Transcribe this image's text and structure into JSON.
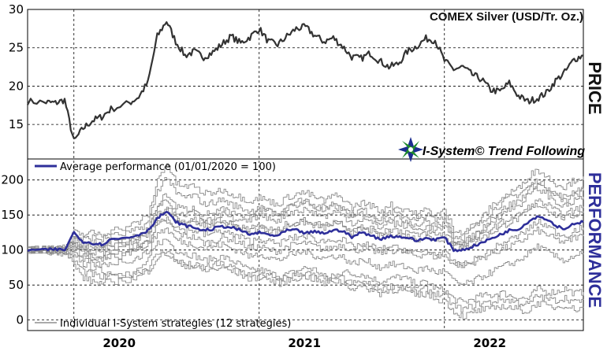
{
  "chart_data": [
    {
      "type": "line",
      "title": "COMEX Silver (USD/Tr. Oz.)",
      "ylabel": "PRICE",
      "ylim": [
        10.5,
        30
      ],
      "yticks": [
        15,
        20,
        25,
        30
      ],
      "xlim": [
        2019.75,
        2022.75
      ],
      "grid": true,
      "series": [
        {
          "values_x": [
            2019.75,
            2019.85,
            2019.9,
            2019.95,
            2020.0,
            2020.05,
            2020.1,
            2020.15,
            2020.2,
            2020.3,
            2020.35,
            2020.4,
            2020.45,
            2020.5,
            2020.55,
            2020.6,
            2020.65,
            2020.7,
            2020.75,
            2020.8,
            2020.85,
            2020.9,
            2020.95,
            2021.0,
            2021.05,
            2021.1,
            2021.15,
            2021.2,
            2021.25,
            2021.3,
            2021.35,
            2021.4,
            2021.45,
            2021.5,
            2021.55,
            2021.6,
            2021.65,
            2021.7,
            2021.75,
            2021.8,
            2021.85,
            2021.9,
            2021.95,
            2022.0,
            2022.05,
            2022.1,
            2022.15,
            2022.2,
            2022.25,
            2022.3,
            2022.35,
            2022.4,
            2022.45,
            2022.5,
            2022.55,
            2022.6,
            2022.65,
            2022.7,
            2022.75
          ],
          "values_y": [
            18.0,
            17.9,
            17.8,
            18.2,
            12.8,
            14.5,
            15.5,
            16.0,
            17.0,
            17.8,
            18.6,
            20.5,
            26.5,
            28.5,
            25.8,
            24.0,
            24.5,
            23.8,
            24.4,
            25.5,
            26.5,
            25.6,
            26.4,
            27.5,
            25.8,
            25.4,
            26.5,
            27.5,
            27.7,
            26.6,
            25.8,
            26.3,
            25.2,
            23.8,
            23.6,
            24.3,
            23.3,
            22.5,
            22.9,
            24.5,
            25.2,
            26.2,
            26.0,
            23.3,
            22.2,
            22.5,
            21.5,
            20.9,
            19.5,
            19.3,
            20.4,
            18.7,
            18.0,
            18.4,
            19.1,
            20.7,
            21.8,
            23.5,
            24.0
          ]
        }
      ]
    },
    {
      "type": "line",
      "title": "I-System© Trend Following",
      "ylabel": "PERFORMANCE",
      "ylim": [
        -15,
        230
      ],
      "yticks": [
        0,
        50,
        100,
        150,
        200
      ],
      "xticks": [
        "2020",
        "2021",
        "2022"
      ],
      "legend_top": "Average performance (01/01/2020 = 100)",
      "legend_bottom": "Individual I-System strategies (12 strategies)",
      "colors": {
        "average": "#2e2f9a",
        "strategies": "#8a8a8a",
        "price": "#333333"
      },
      "average": {
        "values_x": [
          2019.75,
          2019.85,
          2019.9,
          2019.95,
          2020.0,
          2020.05,
          2020.1,
          2020.15,
          2020.2,
          2020.3,
          2020.35,
          2020.4,
          2020.45,
          2020.5,
          2020.55,
          2020.6,
          2020.65,
          2020.7,
          2020.75,
          2020.8,
          2020.85,
          2020.9,
          2020.95,
          2021.0,
          2021.05,
          2021.1,
          2021.15,
          2021.2,
          2021.25,
          2021.3,
          2021.35,
          2021.4,
          2021.45,
          2021.5,
          2021.55,
          2021.6,
          2021.65,
          2021.7,
          2021.75,
          2021.8,
          2021.85,
          2021.9,
          2021.95,
          2022.0,
          2022.05,
          2022.1,
          2022.15,
          2022.2,
          2022.25,
          2022.3,
          2022.35,
          2022.4,
          2022.45,
          2022.5,
          2022.55,
          2022.6,
          2022.65,
          2022.7,
          2022.75
        ],
        "values_y": [
          100,
          100,
          101,
          100,
          125,
          112,
          110,
          108,
          115,
          118,
          122,
          128,
          145,
          155,
          140,
          135,
          132,
          128,
          130,
          134,
          132,
          128,
          122,
          125,
          122,
          120,
          128,
          128,
          124,
          126,
          124,
          128,
          128,
          118,
          125,
          122,
          115,
          120,
          119,
          118,
          113,
          117,
          115,
          118,
          100,
          100,
          105,
          110,
          116,
          122,
          128,
          130,
          140,
          148,
          145,
          135,
          130,
          138,
          140
        ]
      },
      "strategies": [
        {
          "values_y": [
            100,
            98,
            96,
            95,
            95,
            80,
            75,
            70,
            68,
            65,
            72,
            85,
            110,
            115,
            100,
            95,
            92,
            85,
            88,
            90,
            85,
            78,
            70,
            72,
            68,
            62,
            65,
            70,
            75,
            72,
            62,
            58,
            70,
            65,
            66,
            60,
            55,
            58,
            62,
            58,
            50,
            55,
            45,
            42,
            30,
            25,
            30,
            35,
            35,
            40,
            35,
            32,
            30,
            45,
            40,
            40,
            45,
            38,
            40
          ]
        },
        {
          "values_y": [
            100,
            102,
            104,
            103,
            115,
            108,
            110,
            108,
            112,
            118,
            122,
            130,
            160,
            175,
            155,
            150,
            155,
            140,
            145,
            150,
            145,
            140,
            148,
            160,
            155,
            150,
            165,
            170,
            172,
            165,
            160,
            168,
            162,
            150,
            158,
            152,
            145,
            155,
            150,
            148,
            140,
            150,
            142,
            150,
            120,
            118,
            130,
            140,
            155,
            165,
            175,
            180,
            190,
            200,
            190,
            180,
            175,
            185,
            190
          ]
        },
        {
          "values_y": [
            100,
            100,
            100,
            100,
            110,
            100,
            98,
            95,
            100,
            105,
            108,
            112,
            135,
            140,
            125,
            120,
            118,
            110,
            112,
            118,
            115,
            110,
            102,
            105,
            100,
            98,
            105,
            108,
            110,
            105,
            100,
            105,
            108,
            98,
            102,
            100,
            95,
            100,
            98,
            95,
            92,
            95,
            90,
            92,
            80,
            78,
            82,
            88,
            95,
            100,
            105,
            110,
            120,
            128,
            122,
            115,
            110,
            118,
            120
          ]
        },
        {
          "values_y": [
            100,
            101,
            99,
            100,
            105,
            95,
            90,
            88,
            92,
            98,
            105,
            115,
            150,
            160,
            148,
            140,
            145,
            138,
            140,
            142,
            138,
            132,
            128,
            132,
            128,
            125,
            135,
            138,
            140,
            135,
            132,
            138,
            136,
            125,
            130,
            128,
            120,
            125,
            122,
            120,
            115,
            120,
            115,
            118,
            105,
            100,
            110,
            118,
            125,
            132,
            140,
            145,
            155,
            165,
            160,
            150,
            145,
            150,
            155
          ]
        },
        {
          "values_y": [
            100,
            99,
            98,
            97,
            85,
            70,
            65,
            60,
            62,
            65,
            70,
            75,
            95,
            100,
            85,
            80,
            78,
            75,
            78,
            80,
            75,
            70,
            65,
            68,
            62,
            58,
            62,
            65,
            68,
            62,
            58,
            62,
            60,
            52,
            55,
            50,
            45,
            48,
            50,
            45,
            40,
            45,
            38,
            35,
            20,
            15,
            20,
            25,
            25,
            30,
            28,
            25,
            22,
            35,
            30,
            28,
            32,
            25,
            30
          ]
        },
        {
          "values_y": [
            100,
            100,
            101,
            101,
            120,
            115,
            118,
            115,
            120,
            125,
            130,
            140,
            185,
            205,
            180,
            175,
            178,
            165,
            168,
            172,
            165,
            160,
            155,
            160,
            155,
            150,
            160,
            165,
            168,
            160,
            155,
            162,
            158,
            145,
            152,
            148,
            140,
            148,
            145,
            142,
            135,
            142,
            135,
            140,
            115,
            110,
            120,
            130,
            145,
            155,
            165,
            170,
            185,
            195,
            188,
            175,
            170,
            178,
            185
          ]
        },
        {
          "values_y": [
            100,
            100,
            100,
            99,
            95,
            85,
            80,
            78,
            82,
            85,
            90,
            98,
            125,
            130,
            115,
            110,
            108,
            102,
            105,
            108,
            102,
            98,
            90,
            95,
            90,
            85,
            92,
            95,
            98,
            92,
            88,
            92,
            90,
            80,
            85,
            82,
            75,
            80,
            78,
            75,
            70,
            75,
            68,
            70,
            55,
            50,
            55,
            62,
            68,
            75,
            80,
            85,
            95,
            105,
            98,
            90,
            85,
            92,
            95
          ]
        },
        {
          "values_y": [
            100,
            101,
            102,
            102,
            108,
            102,
            100,
            100,
            104,
            110,
            115,
            122,
            150,
            158,
            145,
            140,
            140,
            135,
            138,
            140,
            136,
            132,
            130,
            135,
            130,
            128,
            138,
            140,
            142,
            138,
            135,
            140,
            138,
            128,
            132,
            130,
            125,
            130,
            128,
            126,
            120,
            125,
            122,
            124,
            110,
            106,
            114,
            120,
            130,
            138,
            145,
            150,
            160,
            170,
            165,
            155,
            150,
            158,
            162
          ]
        },
        {
          "values_y": [
            100,
            99,
            100,
            98,
            78,
            60,
            55,
            52,
            55,
            58,
            62,
            70,
            90,
            95,
            82,
            78,
            75,
            70,
            72,
            75,
            70,
            65,
            58,
            62,
            58,
            52,
            56,
            60,
            62,
            58,
            52,
            56,
            54,
            45,
            48,
            44,
            38,
            42,
            44,
            40,
            34,
            38,
            30,
            28,
            12,
            5,
            10,
            15,
            15,
            20,
            18,
            15,
            12,
            25,
            20,
            18,
            22,
            15,
            18
          ]
        },
        {
          "values_y": [
            100,
            100,
            102,
            103,
            125,
            122,
            125,
            122,
            128,
            135,
            140,
            150,
            200,
            225,
            195,
            190,
            192,
            180,
            182,
            186,
            180,
            175,
            170,
            175,
            170,
            165,
            175,
            180,
            182,
            175,
            170,
            178,
            174,
            160,
            168,
            164,
            155,
            165,
            160,
            158,
            150,
            158,
            150,
            156,
            130,
            125,
            135,
            145,
            162,
            172,
            182,
            188,
            205,
            215,
            205,
            195,
            190,
            200,
            205
          ]
        },
        {
          "values_y": [
            100,
            100,
            99,
            100,
            102,
            92,
            88,
            86,
            90,
            95,
            100,
            108,
            140,
            148,
            132,
            128,
            128,
            122,
            124,
            128,
            122,
            118,
            112,
            116,
            112,
            108,
            116,
            118,
            120,
            115,
            112,
            116,
            114,
            104,
            108,
            106,
            100,
            105,
            102,
            100,
            95,
            100,
            94,
            96,
            82,
            78,
            85,
            92,
            100,
            108,
            115,
            120,
            130,
            140,
            135,
            125,
            120,
            128,
            132
          ]
        },
        {
          "values_y": [
            100,
            101,
            100,
            101,
            112,
            106,
            106,
            104,
            108,
            114,
            118,
            126,
            165,
            180,
            162,
            158,
            160,
            150,
            154,
            158,
            152,
            148,
            144,
            150,
            146,
            142,
            152,
            156,
            158,
            152,
            148,
            154,
            150,
            138,
            144,
            140,
            132,
            140,
            136,
            134,
            128,
            134,
            128,
            132,
            112,
            108,
            118,
            126,
            140,
            150,
            158,
            164,
            178,
            188,
            180,
            168,
            162,
            170,
            176
          ]
        }
      ]
    }
  ]
}
